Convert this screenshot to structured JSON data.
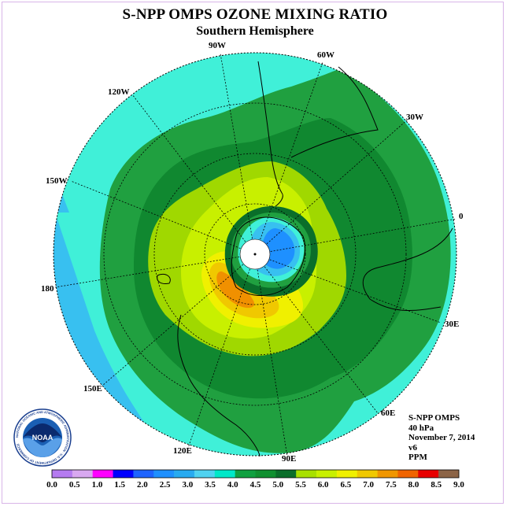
{
  "title": "S-NPP OMPS OZONE MIXING RATIO",
  "subtitle": "Southern Hemisphere",
  "longitude_labels": {
    "l90w": "90W",
    "l60w": "60W",
    "l120w": "120W",
    "l30w": "30W",
    "l150w": "150W",
    "l0": "0",
    "l180": "180",
    "l30e": "30E",
    "l150e": "150E",
    "l60e": "60E",
    "l120e": "120E",
    "l90e": "90E"
  },
  "info": {
    "instrument": "S-NPP OMPS",
    "pressure": "40 hPa",
    "date": "November 7, 2014",
    "version": "v6",
    "units": "PPM"
  },
  "logo": {
    "text": "NOAA",
    "ring_text": "NATIONAL OCEANIC AND ATMOSPHERIC ADMINISTRATION · U.S. DEPARTMENT OF COMMERCE"
  },
  "colorbar": {
    "ticks": [
      "0.0",
      "0.5",
      "1.0",
      "1.5",
      "2.0",
      "2.5",
      "3.0",
      "3.5",
      "4.0",
      "4.5",
      "5.0",
      "5.5",
      "6.0",
      "6.5",
      "7.0",
      "7.5",
      "8.0",
      "8.5",
      "9.0"
    ],
    "colors": [
      "#b57bf0",
      "#d8a8f0",
      "#ff00ff",
      "#0000ff",
      "#1e64ff",
      "#1e90ff",
      "#28aaf0",
      "#50d2f0",
      "#00e8c8",
      "#10a040",
      "#109030",
      "#0a6e2a",
      "#a8e000",
      "#c8f000",
      "#f0f000",
      "#f0c800",
      "#f09600",
      "#f06400",
      "#e80000",
      "#8c6446"
    ]
  },
  "colors": {
    "lt_teal": "#40f0d8",
    "lt_blue": "#38c0f0",
    "green1": "#20a040",
    "green2": "#108830",
    "green3": "#0a6e2a",
    "yg1": "#a0d800",
    "yg2": "#c8f000",
    "yellow": "#f0f000",
    "gold": "#f0c800",
    "orange": "#f09000",
    "blue": "#1e90ff"
  }
}
